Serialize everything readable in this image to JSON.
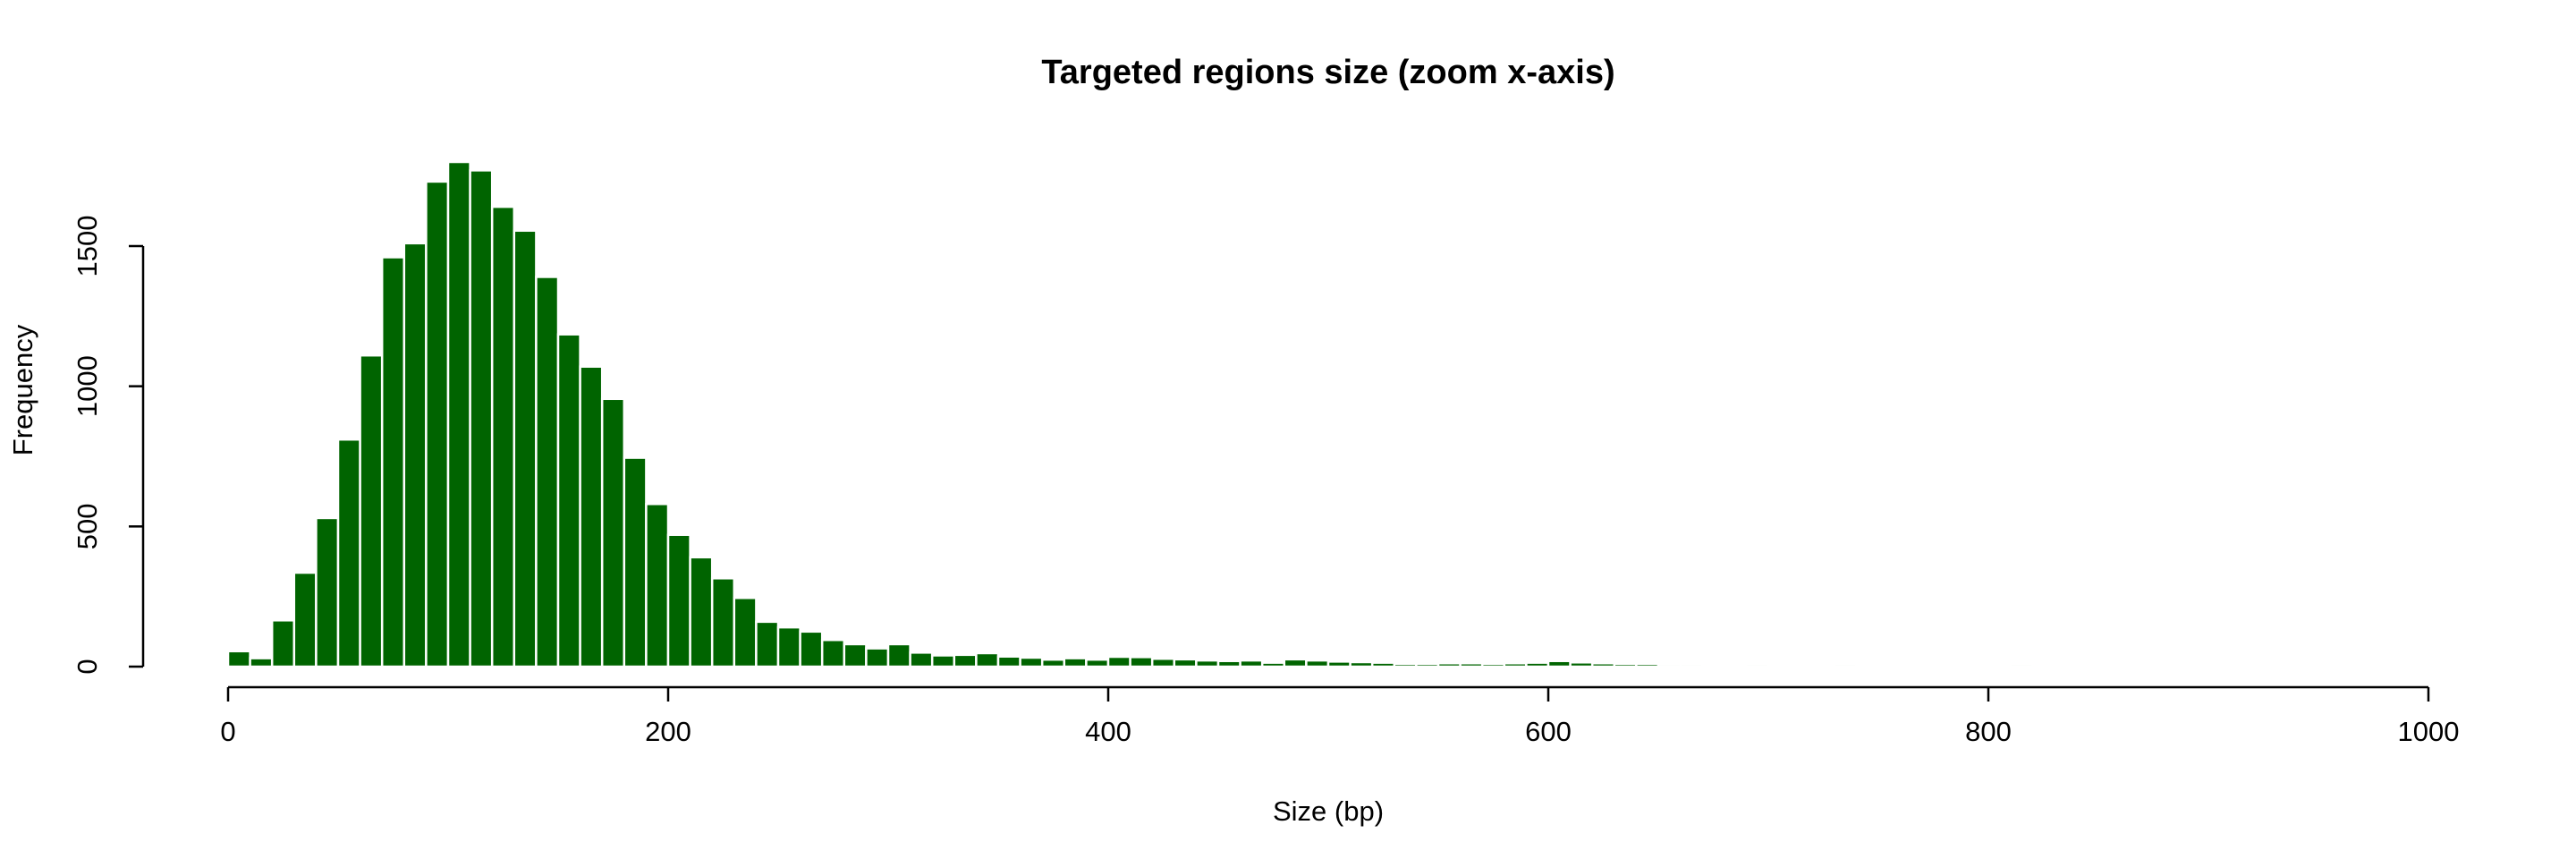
{
  "chart_data": {
    "type": "bar",
    "title": "Targeted regions size (zoom x-axis)",
    "xlabel": "Size (bp)",
    "ylabel": "Frequency",
    "xlim": [
      0,
      1000
    ],
    "ylim": [
      0,
      1500
    ],
    "x_ticks": [
      0,
      200,
      400,
      600,
      800,
      1000
    ],
    "y_ticks": [
      0,
      500,
      1000,
      1500
    ],
    "bin_width": 10,
    "bin_start": 0,
    "bar_color": "#006400",
    "grid": false,
    "values": [
      55,
      30,
      165,
      335,
      530,
      810,
      1110,
      1460,
      1510,
      1730,
      1800,
      1770,
      1640,
      1555,
      1390,
      1185,
      1070,
      955,
      745,
      580,
      470,
      390,
      315,
      245,
      160,
      140,
      125,
      95,
      80,
      65,
      80,
      50,
      40,
      42,
      48,
      36,
      32,
      25,
      30,
      25,
      35,
      34,
      28,
      26,
      22,
      20,
      22,
      14,
      26,
      22,
      18,
      16,
      14,
      10,
      10,
      12,
      12,
      10,
      12,
      14,
      20,
      15,
      12,
      10,
      10,
      8,
      8,
      6,
      6,
      8,
      6,
      4,
      4,
      8,
      6,
      4,
      2,
      4,
      4,
      4,
      2,
      8,
      4,
      4,
      4,
      2,
      4,
      4,
      6,
      6,
      6,
      4,
      6,
      2,
      2,
      2,
      2,
      2,
      4,
      2,
      2,
      2,
      2,
      2
    ]
  }
}
